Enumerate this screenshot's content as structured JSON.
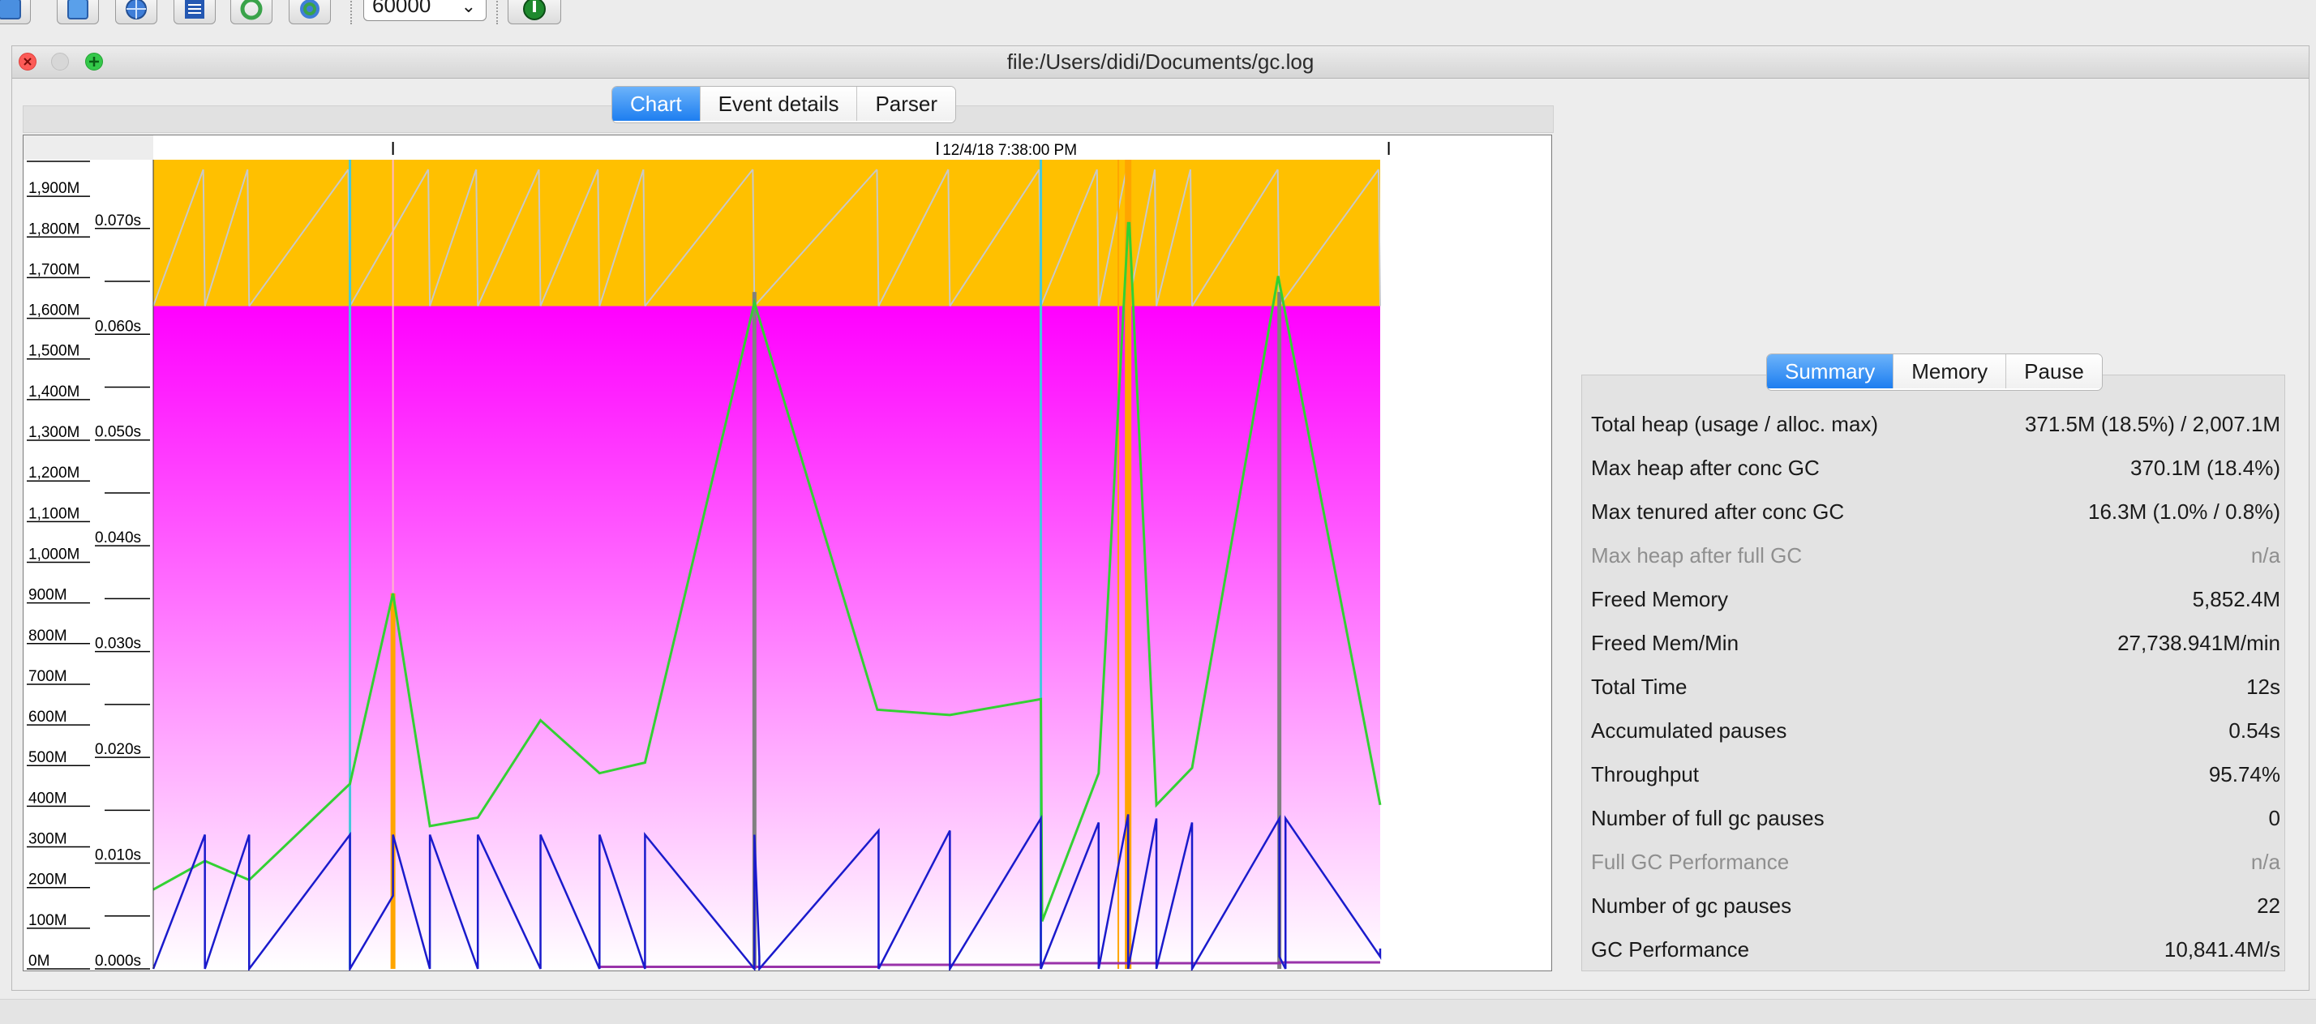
{
  "toolbar": {
    "buttons": [
      {
        "icon": "open-file-icon"
      },
      {
        "icon": "open-series-icon"
      },
      {
        "icon": "open-url-icon"
      },
      {
        "icon": "document-list-icon"
      },
      {
        "icon": "refresh-icon"
      },
      {
        "icon": "watch-log-icon"
      }
    ],
    "refresh_interval": "60000",
    "info_icon": "info-icon"
  },
  "window": {
    "title": "file:/Users/didi/Documents/gc.log"
  },
  "main_tabs": [
    {
      "label": "Chart",
      "active": true
    },
    {
      "label": "Event details",
      "active": false
    },
    {
      "label": "Parser",
      "active": false
    }
  ],
  "summary_tabs": [
    {
      "label": "Summary",
      "active": true
    },
    {
      "label": "Memory",
      "active": false
    },
    {
      "label": "Pause",
      "active": false
    }
  ],
  "summary": [
    {
      "label": "Total heap (usage / alloc. max)",
      "value": "371.5M (18.5%) / 2,007.1M",
      "dim": false
    },
    {
      "label": "Max heap after conc GC",
      "value": "370.1M (18.4%)",
      "dim": false
    },
    {
      "label": "Max tenured after conc GC",
      "value": "16.3M (1.0% / 0.8%)",
      "dim": false
    },
    {
      "label": "Max heap after full GC",
      "value": "n/a",
      "dim": true
    },
    {
      "label": "Freed Memory",
      "value": "5,852.4M",
      "dim": false
    },
    {
      "label": "Freed Mem/Min",
      "value": "27,738.941M/min",
      "dim": false
    },
    {
      "label": "Total Time",
      "value": "12s",
      "dim": false
    },
    {
      "label": "Accumulated pauses",
      "value": "0.54s",
      "dim": false
    },
    {
      "label": "Throughput",
      "value": "95.74%",
      "dim": false
    },
    {
      "label": "Number of full gc pauses",
      "value": "0",
      "dim": false
    },
    {
      "label": "Full GC Performance",
      "value": "n/a",
      "dim": true
    },
    {
      "label": "Number of gc pauses",
      "value": "22",
      "dim": false
    },
    {
      "label": "GC Performance",
      "value": "10,841.4M/s",
      "dim": false
    }
  ],
  "chart_data": {
    "type": "line",
    "time_label": "12/4/18 7:38:00 PM",
    "memory_axis": {
      "ticks": [
        "0M",
        "100M",
        "200M",
        "300M",
        "400M",
        "500M",
        "600M",
        "700M",
        "800M",
        "900M",
        "1,000M",
        "1,100M",
        "1,200M",
        "1,300M",
        "1,400M",
        "1,500M",
        "1,600M",
        "1,700M",
        "1,800M",
        "1,900M"
      ],
      "range": [
        0,
        1990
      ]
    },
    "pause_axis": {
      "ticks": [
        "0.000s",
        "0.010s",
        "0.020s",
        "0.030s",
        "0.040s",
        "0.050s",
        "0.060s",
        "0.070s"
      ],
      "range": [
        0,
        0.0765
      ]
    },
    "x_range": [
      0,
      100
    ],
    "allocated_heap_M": 1630,
    "colors": {
      "tenured_fill": "#ffc000",
      "young_fill_top": "#ff00ff",
      "young_fill_bottom": "#ffffff",
      "used_heap": "#1a1acc",
      "pause_line": "#33d133",
      "full_marker": "#ffa500",
      "gc_marker": "#808080",
      "tenured_used": "#9933aa",
      "sawtooth": "#c8c8c8",
      "conc_marker": "#44c8dc"
    },
    "series": [
      {
        "name": "used heap",
        "x": [
          0,
          4.2,
          4.2,
          7.8,
          7.8,
          16,
          16,
          19.5,
          19.5,
          22.5,
          22.5,
          26.4,
          26.4,
          31.5,
          31.5,
          36.3,
          36.3,
          40,
          40,
          48.9,
          48.9,
          49.3,
          49.3,
          59,
          59,
          64.8,
          64.8,
          72.2,
          72.2,
          76.9,
          76.9,
          79.3,
          79.3,
          81.6,
          81.6,
          84.5,
          84.5,
          91.6,
          91.6,
          92.1,
          92.1,
          99.8,
          99.8
        ],
        "y": [
          0,
          330,
          0,
          330,
          0,
          330,
          0,
          180,
          330,
          0,
          330,
          0,
          330,
          0,
          330,
          0,
          330,
          0,
          330,
          0,
          330,
          30,
          0,
          340,
          0,
          340,
          0,
          370,
          0,
          360,
          0,
          380,
          0,
          370,
          0,
          360,
          0,
          370,
          30,
          0,
          370,
          30,
          50
        ]
      },
      {
        "name": "pause times",
        "x": [
          0,
          4.2,
          7.8,
          16,
          19.5,
          22.5,
          26.4,
          31.5,
          36.3,
          40,
          48.9,
          58.9,
          64.8,
          72.2,
          72.3,
          76.9,
          79.3,
          79.4,
          81.6,
          84.5,
          91.5,
          99.8
        ],
        "y": [
          0.0075,
          0.0102,
          0.0084,
          0.0175,
          0.0355,
          0.0135,
          0.0143,
          0.0235,
          0.0185,
          0.0195,
          0.063,
          0.0245,
          0.024,
          0.0255,
          0.0045,
          0.0185,
          0.0705,
          0.0705,
          0.0155,
          0.019,
          0.0655,
          0.0155
        ]
      },
      {
        "name": "tenured used",
        "x": [
          36.3,
          59,
          59,
          72.2,
          72.2,
          91.6,
          91.6,
          99.8
        ],
        "y": [
          5,
          5,
          10,
          10,
          14,
          14,
          16,
          16
        ]
      }
    ]
  }
}
